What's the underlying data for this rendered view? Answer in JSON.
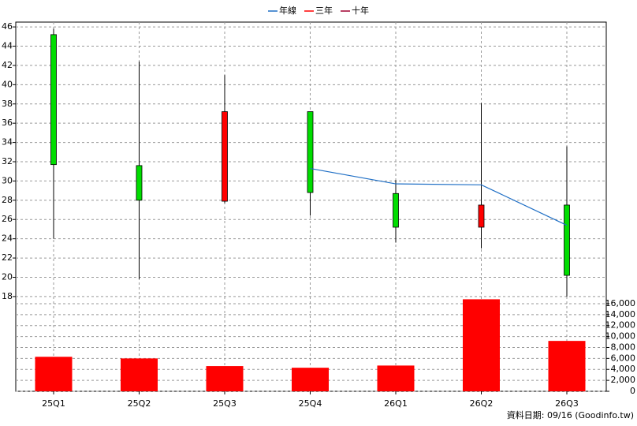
{
  "chart_data": {
    "type": "candlestick",
    "categories": [
      "25Q1",
      "25Q2",
      "25Q3",
      "25Q4",
      "26Q1",
      "26Q2",
      "26Q3"
    ],
    "open": [
      45.2,
      31.6,
      27.9,
      37.2,
      28.7,
      25.2,
      27.5
    ],
    "high": [
      45.8,
      42.4,
      41.0,
      37.2,
      30.1,
      38.1,
      33.6
    ],
    "low": [
      24.0,
      19.8,
      27.7,
      26.4,
      23.6,
      23.0,
      18.0
    ],
    "close": [
      31.7,
      28.0,
      37.2,
      28.8,
      25.2,
      27.5,
      20.2
    ],
    "up_color": "#ff0000",
    "down_color": "#00dd00",
    "ylim": [
      17.5,
      46.5
    ],
    "yticks": [
      18,
      20,
      22,
      24,
      26,
      28,
      30,
      32,
      34,
      36,
      38,
      40,
      42,
      44,
      46
    ],
    "series": [
      {
        "name": "年線",
        "color": "#1f6fc5",
        "values": [
          null,
          null,
          null,
          31.3,
          29.7,
          29.6,
          25.4
        ]
      },
      {
        "name": "三年",
        "color": "#ff0000",
        "values": [
          null,
          null,
          null,
          null,
          null,
          null,
          null
        ]
      },
      {
        "name": "十年",
        "color": "#a00030",
        "values": [
          null,
          null,
          null,
          null,
          null,
          null,
          null
        ]
      }
    ],
    "volume": {
      "color": "#ff0000",
      "values": [
        6300,
        6000,
        4600,
        4300,
        4700,
        16800,
        9200
      ],
      "y2lim": [
        0,
        17000
      ],
      "y2ticks": [
        {
          "value": 0,
          "label": "0"
        },
        {
          "value": 2000,
          "label": "2,000"
        },
        {
          "value": 4000,
          "label": "4,000"
        },
        {
          "value": 6000,
          "label": "6,000"
        },
        {
          "value": 8000,
          "label": "8,000"
        },
        {
          "value": 10000,
          "label": "10,000"
        },
        {
          "value": 12000,
          "label": "12,000"
        },
        {
          "value": 14000,
          "label": "14,000"
        },
        {
          "value": 16000,
          "label": "16,000"
        }
      ]
    },
    "grid": true,
    "source": "資料日期: 09/16  (Goodinfo.tw)"
  }
}
